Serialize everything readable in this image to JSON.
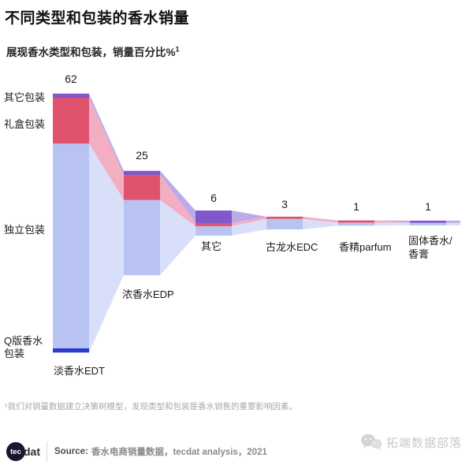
{
  "title": "不同类型和包装的香水销量",
  "subtitle": "展现香水类型和包装，销量百分比%",
  "subtitle_sup": "1",
  "footnote": "¹我们对销量数据建立决策树模型，发现类型和包装是香水销售的重要影响因素。",
  "source": {
    "logo_circle_text": "tec",
    "logo_suffix": "dat",
    "label": "Source:",
    "text": "香水电商销量数据，tecdat analysis，2021"
  },
  "watermark": {
    "icon": "wechat-icon",
    "text": "拓端数据部落"
  },
  "chart_data": {
    "type": "bar",
    "subtype": "stacked_bar_flow_funnel",
    "title": "不同类型和包装的香水销量",
    "subtitle": "展现香水类型和包装，销量百分比%1",
    "unit": "销量百分比%",
    "grid": false,
    "legend_position": "left-axis-labels",
    "categories": [
      "淡香水EDT",
      "浓香水EDP",
      "其它",
      "古龙水EDC",
      "香精parfum",
      "固体香水/香膏"
    ],
    "totals": [
      62,
      25,
      6,
      3,
      1,
      1
    ],
    "series": [
      {
        "name": "其它包装",
        "color": "#8158cc",
        "flow_color": "#bcabe9",
        "values": [
          1,
          1,
          3,
          0,
          0,
          0.4
        ]
      },
      {
        "name": "礼盒包装",
        "color": "#e0536f",
        "flow_color": "#f3aec1",
        "values": [
          11,
          6,
          0.75,
          0.5,
          0.3,
          0
        ]
      },
      {
        "name": "独立包装",
        "color": "#b9c3f1",
        "flow_color": "#dadff9",
        "values": [
          49,
          18,
          2.25,
          2.5,
          0.7,
          0.6
        ]
      },
      {
        "name": "Q版香水包装",
        "color": "#2b3bd4",
        "flow_color": "#dadff9",
        "values": [
          1,
          0,
          0,
          0,
          0,
          0
        ]
      }
    ]
  }
}
